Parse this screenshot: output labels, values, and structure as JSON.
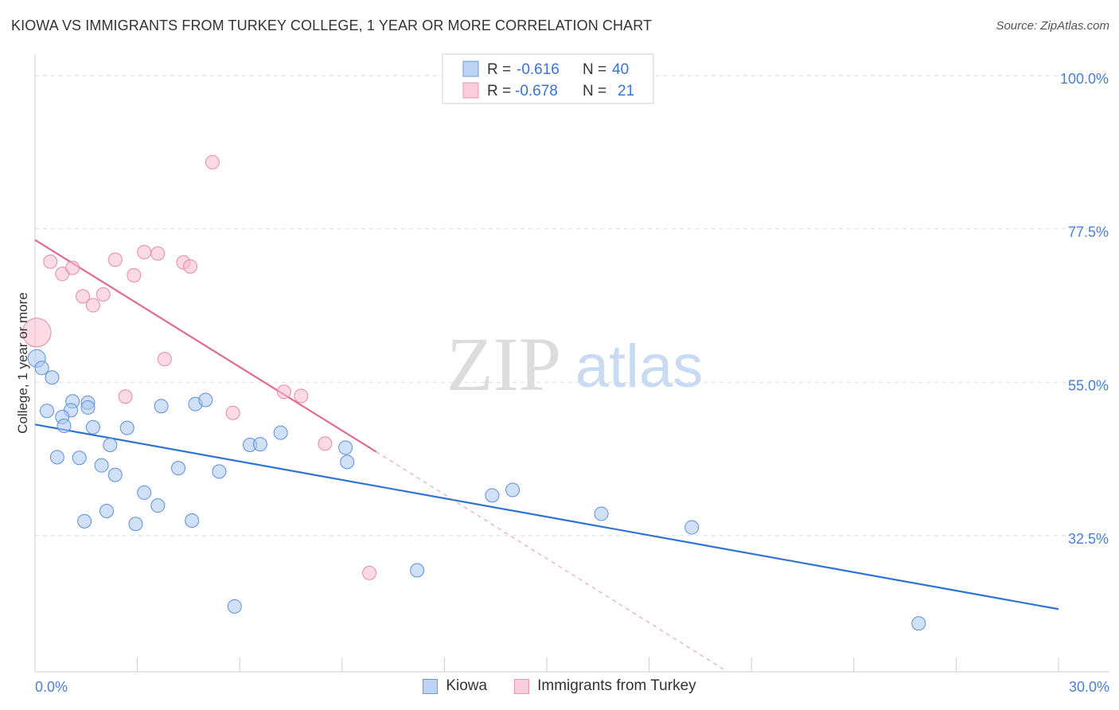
{
  "header": {
    "title": "KIOWA VS IMMIGRANTS FROM TURKEY COLLEGE, 1 YEAR OR MORE CORRELATION CHART",
    "source": "Source: ZipAtlas.com"
  },
  "watermark": {
    "zip": "ZIP",
    "atlas": "atlas"
  },
  "colors": {
    "kiowa_fill": "#a9c8f0",
    "kiowa_stroke": "#5b8fd9",
    "kiowa_line": "#2f73d2",
    "turkey_fill": "#f7bccd",
    "turkey_stroke": "#e58aa6",
    "turkey_line": "#e06a93",
    "grid": "#dcdcdc",
    "axis_label": "#4a7fd1"
  },
  "stats_legend": [
    {
      "r_label": "R =",
      "r_value": "-0.616",
      "n_label": "N =",
      "n_value": "40"
    },
    {
      "r_label": "R =",
      "r_value": "-0.678",
      "n_label": "N =",
      "n_value": "21"
    }
  ],
  "chart_data": {
    "type": "scatter",
    "title": "KIOWA VS IMMIGRANTS FROM TURKEY COLLEGE, 1 YEAR OR MORE CORRELATION CHART",
    "xlabel": "",
    "ylabel": "College, 1 year or more",
    "xlim": [
      0,
      30
    ],
    "ylim": [
      12.5,
      102
    ],
    "x_tick_labels": [
      "0.0%",
      "30.0%"
    ],
    "y_ticks": [
      32.5,
      55.0,
      77.5,
      100.0
    ],
    "y_tick_labels": [
      "32.5%",
      "55.0%",
      "77.5%",
      "100.0%"
    ],
    "legend": [
      "Kiowa",
      "Immigrants from Turkey"
    ],
    "series": [
      {
        "name": "Kiowa",
        "r": -0.616,
        "n": 40,
        "trend": {
          "x": [
            0,
            30
          ],
          "y": [
            48.8,
            21.7
          ]
        },
        "points": [
          {
            "x": 0.05,
            "y": 58.5,
            "big": true
          },
          {
            "x": 0.2,
            "y": 57.1
          },
          {
            "x": 0.5,
            "y": 55.7
          },
          {
            "x": 1.1,
            "y": 52.2
          },
          {
            "x": 1.55,
            "y": 52.0
          },
          {
            "x": 0.35,
            "y": 50.8
          },
          {
            "x": 1.05,
            "y": 50.9
          },
          {
            "x": 1.55,
            "y": 51.3
          },
          {
            "x": 0.8,
            "y": 49.9
          },
          {
            "x": 0.85,
            "y": 48.6
          },
          {
            "x": 1.7,
            "y": 48.4
          },
          {
            "x": 2.7,
            "y": 48.3
          },
          {
            "x": 3.7,
            "y": 51.5
          },
          {
            "x": 4.7,
            "y": 51.8
          },
          {
            "x": 5.0,
            "y": 52.4
          },
          {
            "x": 2.2,
            "y": 45.8
          },
          {
            "x": 0.65,
            "y": 44.0
          },
          {
            "x": 1.3,
            "y": 43.9
          },
          {
            "x": 1.95,
            "y": 42.8
          },
          {
            "x": 2.35,
            "y": 41.4
          },
          {
            "x": 4.2,
            "y": 42.4
          },
          {
            "x": 5.4,
            "y": 41.9
          },
          {
            "x": 6.3,
            "y": 45.8
          },
          {
            "x": 6.6,
            "y": 45.9
          },
          {
            "x": 7.2,
            "y": 47.6
          },
          {
            "x": 9.1,
            "y": 45.4
          },
          {
            "x": 9.15,
            "y": 43.3
          },
          {
            "x": 3.2,
            "y": 38.8
          },
          {
            "x": 3.6,
            "y": 36.9
          },
          {
            "x": 2.1,
            "y": 36.1
          },
          {
            "x": 1.45,
            "y": 34.6
          },
          {
            "x": 2.95,
            "y": 34.2
          },
          {
            "x": 4.6,
            "y": 34.7
          },
          {
            "x": 13.4,
            "y": 38.4
          },
          {
            "x": 14.0,
            "y": 39.2
          },
          {
            "x": 16.6,
            "y": 35.7
          },
          {
            "x": 19.25,
            "y": 33.7
          },
          {
            "x": 11.2,
            "y": 27.4
          },
          {
            "x": 5.85,
            "y": 22.1
          },
          {
            "x": 25.9,
            "y": 19.6
          }
        ]
      },
      {
        "name": "Immigrants from Turkey",
        "r": -0.678,
        "n": 21,
        "trend": {
          "x": [
            0,
            10.0
          ],
          "y": [
            75.9,
            44.8
          ]
        },
        "trend_extension": {
          "x": [
            10.0,
            20.3
          ],
          "y": [
            44.8,
            12.5
          ]
        },
        "points": [
          {
            "x": 0.05,
            "y": 62.3,
            "big": true
          },
          {
            "x": 0.45,
            "y": 72.7
          },
          {
            "x": 0.8,
            "y": 70.9
          },
          {
            "x": 1.1,
            "y": 71.8
          },
          {
            "x": 1.4,
            "y": 67.6
          },
          {
            "x": 1.7,
            "y": 66.3
          },
          {
            "x": 2.0,
            "y": 67.9
          },
          {
            "x": 2.35,
            "y": 73.0
          },
          {
            "x": 2.9,
            "y": 70.7
          },
          {
            "x": 3.2,
            "y": 74.1
          },
          {
            "x": 3.6,
            "y": 73.9
          },
          {
            "x": 4.35,
            "y": 72.6
          },
          {
            "x": 4.55,
            "y": 72.0
          },
          {
            "x": 5.2,
            "y": 87.3
          },
          {
            "x": 3.8,
            "y": 58.4
          },
          {
            "x": 2.65,
            "y": 52.9
          },
          {
            "x": 5.8,
            "y": 50.5
          },
          {
            "x": 7.3,
            "y": 53.6
          },
          {
            "x": 7.8,
            "y": 53.0
          },
          {
            "x": 8.5,
            "y": 46.0
          },
          {
            "x": 9.8,
            "y": 27.0
          }
        ]
      }
    ]
  }
}
